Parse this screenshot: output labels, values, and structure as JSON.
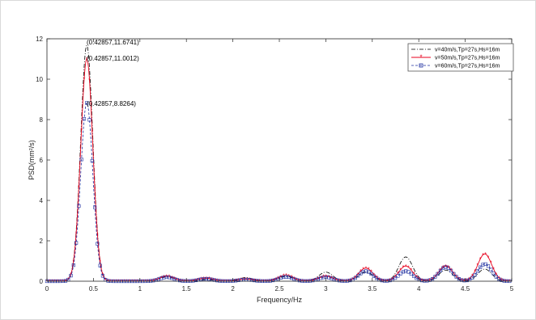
{
  "chart_data": {
    "type": "line",
    "title": "",
    "xlabel": "Frequency/Hz",
    "ylabel": "PSD(mm²/s)",
    "xlim": [
      0,
      5
    ],
    "ylim": [
      0,
      12
    ],
    "xticks": [
      0,
      0.5,
      1,
      1.5,
      2,
      2.5,
      3,
      3.5,
      4,
      4.5,
      5
    ],
    "xtick_labels": [
      "0",
      "0.5",
      "1",
      "1.5",
      "2",
      "2.5",
      "3",
      "3.5",
      "4",
      "4.5",
      "5"
    ],
    "yticks": [
      0,
      2,
      4,
      6,
      8,
      10,
      12
    ],
    "ytick_labels": [
      "0",
      "2",
      "4",
      "6",
      "8",
      "10",
      "12"
    ],
    "grid": false,
    "legend_position": "top-right",
    "series": [
      {
        "name": "v=40m/s,Tp=27s,Hs=16m",
        "color": "#000000",
        "line_style": "dash-dot",
        "marker": "none",
        "peaks": [
          [
            0.42857,
            11.6741
          ],
          [
            1.29,
            0.22
          ],
          [
            1.71,
            0.08
          ],
          [
            2.14,
            0.18
          ],
          [
            2.57,
            0.25
          ],
          [
            3.0,
            0.45
          ],
          [
            3.43,
            0.45
          ],
          [
            3.86,
            1.2
          ],
          [
            4.29,
            0.55
          ],
          [
            4.71,
            0.6
          ]
        ]
      },
      {
        "name": "v=50m/s,Tp=27s,Hs=16m",
        "color": "#e8001c",
        "line_style": "solid",
        "marker": "star",
        "peaks": [
          [
            0.42857,
            11.0012
          ],
          [
            1.29,
            0.25
          ],
          [
            1.71,
            0.15
          ],
          [
            2.14,
            0.1
          ],
          [
            2.57,
            0.3
          ],
          [
            3.0,
            0.25
          ],
          [
            3.43,
            0.65
          ],
          [
            3.86,
            0.75
          ],
          [
            4.29,
            0.75
          ],
          [
            4.71,
            1.35
          ]
        ]
      },
      {
        "name": "v=60m/s,Tp=27s,Hs=16m",
        "color": "#1f2fa0",
        "line_style": "dashed",
        "marker": "square",
        "peaks": [
          [
            0.42857,
            8.8264
          ],
          [
            1.29,
            0.2
          ],
          [
            1.71,
            0.12
          ],
          [
            2.14,
            0.08
          ],
          [
            2.57,
            0.22
          ],
          [
            3.0,
            0.2
          ],
          [
            3.43,
            0.5
          ],
          [
            3.86,
            0.5
          ],
          [
            4.29,
            0.7
          ],
          [
            4.71,
            0.85
          ]
        ]
      }
    ],
    "annotations": [
      {
        "text": "(0.42857,11.6741)",
        "x": 0.42857,
        "y": 11.6741
      },
      {
        "text": "(0.42857,11.0012)",
        "x": 0.42857,
        "y": 11.0012
      },
      {
        "text": "(0.42857,8.8264)",
        "x": 0.42857,
        "y": 8.8264
      }
    ]
  }
}
